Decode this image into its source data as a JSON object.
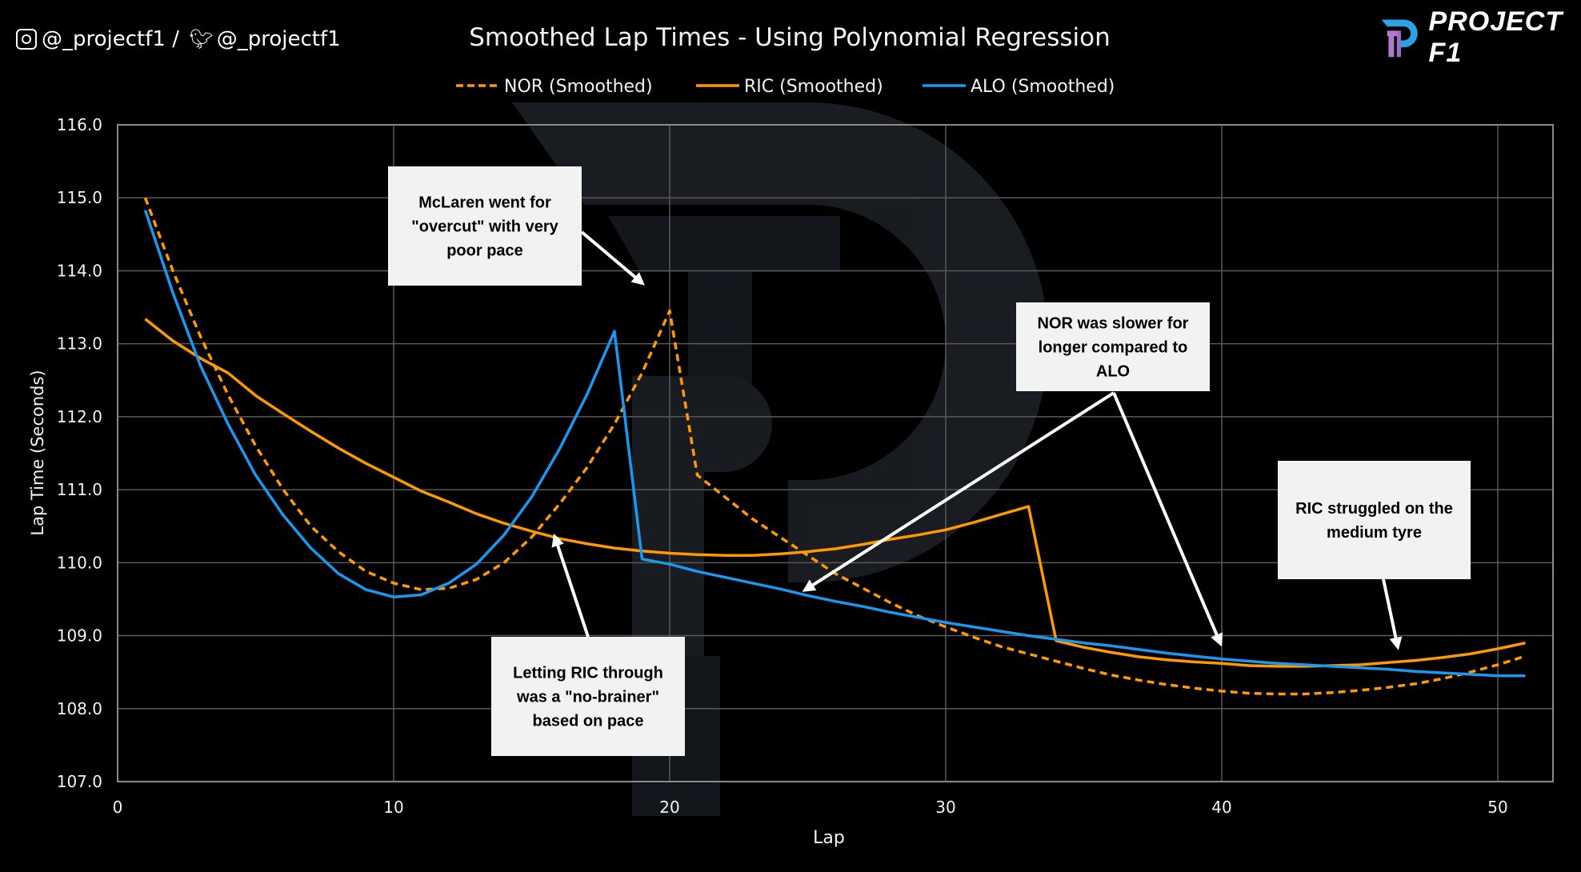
{
  "header": {
    "social_handle": "@_projectf1 / ",
    "twitter_handle": "@_projectf1",
    "instagram_icon": "instagram-icon",
    "twitter_icon": "twitter-bird-icon",
    "logo_text": "PROJECT F1"
  },
  "colors": {
    "background": "#000000",
    "nor": "#ff9900",
    "ric": "#ff9900",
    "alo": "#1a98f0",
    "grid": "#595959",
    "annotation_box": "#f2f2f2"
  },
  "chart_data": {
    "type": "line",
    "title": "Smoothed Lap Times - Using Polynomial Regression",
    "xlabel": "Lap",
    "ylabel": "Lap Time (Seconds)",
    "xlim": [
      0,
      52
    ],
    "ylim": [
      107,
      116
    ],
    "xticks": [
      0,
      10,
      20,
      30,
      40,
      50
    ],
    "yticks": [
      "107.0",
      "108.0",
      "109.0",
      "110.0",
      "111.0",
      "112.0",
      "113.0",
      "114.0",
      "115.0",
      "116.0"
    ],
    "grid": true,
    "legend_position": "top",
    "x": [
      1,
      2,
      3,
      4,
      5,
      6,
      7,
      8,
      9,
      10,
      11,
      12,
      13,
      14,
      15,
      16,
      17,
      18,
      19,
      20,
      21,
      22,
      23,
      24,
      25,
      26,
      27,
      28,
      29,
      30,
      31,
      32,
      33,
      34,
      35,
      36,
      37,
      38,
      39,
      40,
      41,
      42,
      43,
      44,
      45,
      46,
      47,
      48,
      49,
      50,
      51
    ],
    "series": [
      {
        "name": "NOR (Smoothed)",
        "style": "dashed",
        "color": "#ff9900",
        "values": [
          115.0,
          114.0,
          113.1,
          112.3,
          111.6,
          111.0,
          110.5,
          110.15,
          109.88,
          109.72,
          109.63,
          109.65,
          109.77,
          110.0,
          110.35,
          110.8,
          111.3,
          111.9,
          112.6,
          113.45,
          111.2,
          110.9,
          110.6,
          110.35,
          110.1,
          109.85,
          109.65,
          109.45,
          109.27,
          109.12,
          108.98,
          108.85,
          108.75,
          108.65,
          108.55,
          108.46,
          108.39,
          108.33,
          108.28,
          108.24,
          108.21,
          108.2,
          108.2,
          108.22,
          108.25,
          108.29,
          108.34,
          108.41,
          108.5,
          108.6,
          108.72
        ]
      },
      {
        "name": "RIC (Smoothed)",
        "style": "solid",
        "color": "#ff9900",
        "values": [
          113.34,
          113.04,
          112.8,
          112.6,
          112.29,
          112.04,
          111.8,
          111.57,
          111.36,
          111.17,
          110.98,
          110.83,
          110.67,
          110.54,
          110.43,
          110.33,
          110.26,
          110.2,
          110.16,
          110.13,
          110.11,
          110.1,
          110.1,
          110.12,
          110.15,
          110.19,
          110.25,
          110.32,
          110.38,
          110.45,
          110.55,
          110.66,
          110.77,
          108.93,
          108.84,
          108.77,
          108.71,
          108.67,
          108.64,
          108.62,
          108.59,
          108.58,
          108.58,
          108.59,
          108.6,
          108.63,
          108.66,
          108.7,
          108.75,
          108.82,
          108.9
        ]
      },
      {
        "name": "ALO (Smoothed)",
        "style": "solid",
        "color": "#1a98f0",
        "values": [
          114.83,
          113.7,
          112.7,
          111.9,
          111.2,
          110.65,
          110.2,
          109.85,
          109.63,
          109.53,
          109.56,
          109.72,
          109.98,
          110.38,
          110.9,
          111.55,
          112.3,
          113.17,
          110.05,
          109.98,
          109.88,
          109.8,
          109.72,
          109.64,
          109.55,
          109.47,
          109.4,
          109.32,
          109.25,
          109.18,
          109.12,
          109.06,
          109.0,
          108.95,
          108.9,
          108.86,
          108.81,
          108.76,
          108.72,
          108.68,
          108.65,
          108.62,
          108.6,
          108.58,
          108.56,
          108.54,
          108.51,
          108.49,
          108.47,
          108.45,
          108.45
        ]
      }
    ],
    "annotations": [
      {
        "lines": [
          "McLaren went for",
          "\"overcut\" with very",
          "poor pace"
        ],
        "points_to": [
          [
            19.1,
            113.8
          ]
        ]
      },
      {
        "lines": [
          "Letting RIC through",
          "was a \"no-brainer\"",
          "based on pace"
        ],
        "points_to": [
          [
            15.8,
            110.4
          ]
        ]
      },
      {
        "lines": [
          "NOR was slower for",
          "longer compared to",
          "ALO"
        ],
        "points_to": [
          [
            24.8,
            109.6
          ],
          [
            40.0,
            108.85
          ]
        ]
      },
      {
        "lines": [
          "RIC struggled on the",
          "medium tyre"
        ],
        "points_to": [
          [
            46.4,
            108.8
          ]
        ]
      }
    ]
  }
}
